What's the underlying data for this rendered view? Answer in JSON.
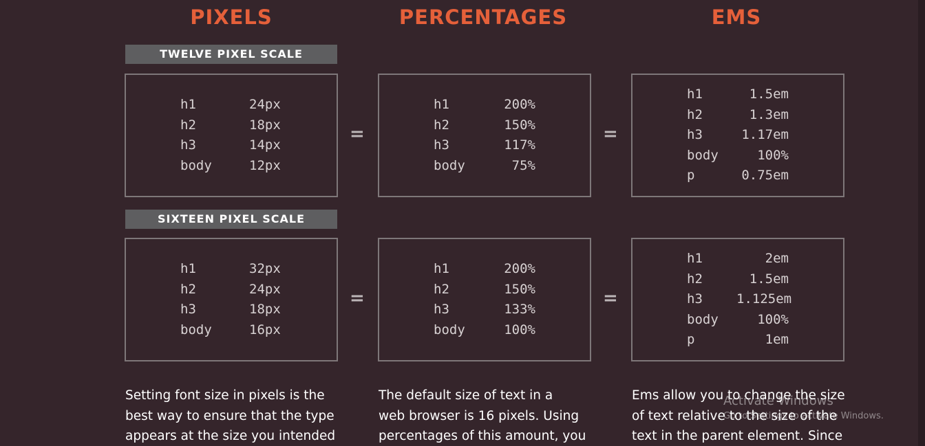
{
  "headings": {
    "pixels": "PIXELS",
    "percentages": "PERCENTAGES",
    "ems": "EMS"
  },
  "scales": {
    "twelve_label": "TWELVE PIXEL SCALE",
    "sixteen_label": "SIXTEEN PIXEL SCALE"
  },
  "equals_sign": "=",
  "twelve": {
    "pixels": [
      {
        "k": "h1",
        "v": "24px"
      },
      {
        "k": "h2",
        "v": "18px"
      },
      {
        "k": "h3",
        "v": "14px"
      },
      {
        "k": "body",
        "v": "12px"
      }
    ],
    "percentages": [
      {
        "k": "h1",
        "v": "200%"
      },
      {
        "k": "h2",
        "v": "150%"
      },
      {
        "k": "h3",
        "v": "117%"
      },
      {
        "k": "body",
        "v": "75%"
      }
    ],
    "ems": [
      {
        "k": "h1",
        "v": "1.5em"
      },
      {
        "k": "h2",
        "v": "1.3em"
      },
      {
        "k": "h3",
        "v": "1.17em"
      },
      {
        "k": "body",
        "v": "100%"
      },
      {
        "k": "p",
        "v": "0.75em"
      }
    ]
  },
  "sixteen": {
    "pixels": [
      {
        "k": "h1",
        "v": "32px"
      },
      {
        "k": "h2",
        "v": "24px"
      },
      {
        "k": "h3",
        "v": "18px"
      },
      {
        "k": "body",
        "v": "16px"
      }
    ],
    "percentages": [
      {
        "k": "h1",
        "v": "200%"
      },
      {
        "k": "h2",
        "v": "150%"
      },
      {
        "k": "h3",
        "v": "133%"
      },
      {
        "k": "body",
        "v": "100%"
      }
    ],
    "ems": [
      {
        "k": "h1",
        "v": "2em"
      },
      {
        "k": "h2",
        "v": "1.5em"
      },
      {
        "k": "h3",
        "v": "1.125em"
      },
      {
        "k": "body",
        "v": "100%"
      },
      {
        "k": "p",
        "v": "1em"
      }
    ]
  },
  "descriptions": {
    "pixels": [
      "Setting font size in pixels is the",
      "best way to ensure that the type",
      "appears at the size you intended"
    ],
    "percentages": [
      "The default size of text in a",
      "web browser is 16 pixels. Using",
      "percentages of this amount, you"
    ],
    "ems": [
      "Ems allow you to change the size",
      "of text relative to the size of the",
      "text in the parent element. Since"
    ]
  },
  "watermark": {
    "title": "Activate Windows",
    "subtitle": "Go to Settings to activate Windows."
  },
  "colors": {
    "background": "#35252b",
    "accent": "#e5603a",
    "scale_bar": "#5e5e60",
    "box_border": "#7e7779"
  }
}
